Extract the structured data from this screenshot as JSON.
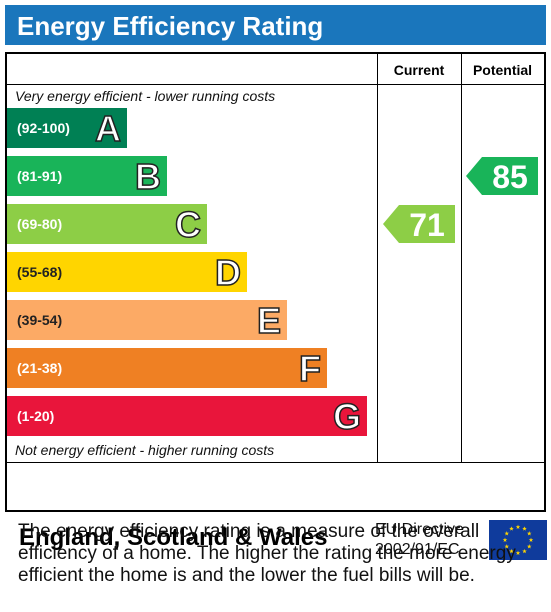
{
  "title": "Energy Efficiency Rating",
  "columns": {
    "current": "Current",
    "potential": "Potential"
  },
  "top_caption": "Very energy efficient - lower running costs",
  "bottom_caption": "Not energy efficient - higher running costs",
  "chart_data": {
    "type": "bar",
    "bands": [
      {
        "range": "(92-100)",
        "letter": "A",
        "color": "#008054"
      },
      {
        "range": "(81-91)",
        "letter": "B",
        "color": "#19b459"
      },
      {
        "range": "(69-80)",
        "letter": "C",
        "color": "#8dce46"
      },
      {
        "range": "(55-68)",
        "letter": "D",
        "color": "#ffd500"
      },
      {
        "range": "(39-54)",
        "letter": "E",
        "color": "#fcaa65"
      },
      {
        "range": "(21-38)",
        "letter": "F",
        "color": "#ef8023"
      },
      {
        "range": "(1-20)",
        "letter": "G",
        "color": "#e9153b"
      }
    ],
    "current": {
      "value": 71,
      "band": "C",
      "color": "#8dce46"
    },
    "potential": {
      "value": 85,
      "band": "B",
      "color": "#19b459"
    }
  },
  "footer": {
    "region": "England, Scotland & Wales",
    "directive_line1": "EU Directive",
    "directive_line2": "2002/91/EC",
    "flag_icon": "eu-flag-icon"
  },
  "description": "The energy efficiency rating is a measure of the overall efficiency of a home. The higher the rating the more energy efficient the home is and the lower the fuel bills will be."
}
